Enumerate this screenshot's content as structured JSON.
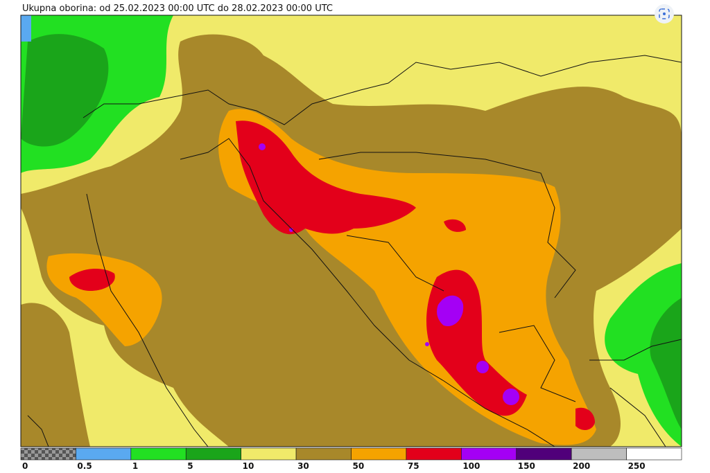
{
  "title": "Ukupna oborina: od 25.02.2023 00:00 UTC do 28.02.2023 00:00 UTC",
  "legend": {
    "labels": [
      0,
      0.5,
      1,
      5,
      10,
      30,
      50,
      75,
      100,
      150,
      200,
      250
    ],
    "colors": [
      "checker",
      "#5aa9f0",
      "#22e022",
      "#1aa51a",
      "#f0ea6a",
      "#a8882a",
      "#f5a300",
      "#e3001a",
      "#a400f5",
      "#50007a",
      "#bebebe",
      "#ffffff"
    ]
  }
}
